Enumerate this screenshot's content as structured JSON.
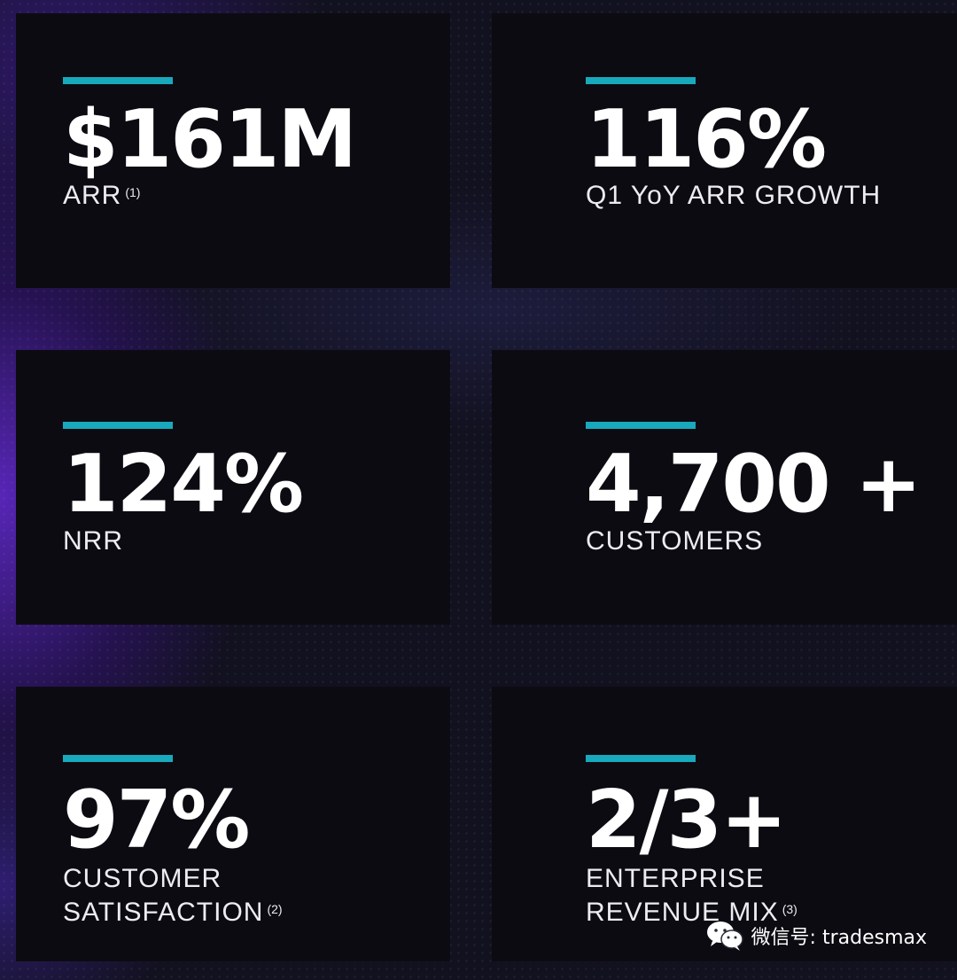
{
  "colors": {
    "accent_bar": "#19a9bc",
    "card_background": "#0d0b12",
    "text": "#ffffff"
  },
  "metrics": [
    {
      "value": "$161M",
      "label_lines": [
        "ARR"
      ],
      "footnote": "(1)"
    },
    {
      "value": "116%",
      "label_lines": [
        "Q1 YoY ARR GROWTH"
      ],
      "footnote": ""
    },
    {
      "value": "124%",
      "label_lines": [
        "NRR"
      ],
      "footnote": ""
    },
    {
      "value": "4,700 +",
      "label_lines": [
        "CUSTOMERS"
      ],
      "footnote": ""
    },
    {
      "value": "97%",
      "label_lines": [
        "CUSTOMER",
        "SATISFACTION"
      ],
      "footnote": "(2)"
    },
    {
      "value": "2/3+",
      "label_lines": [
        "ENTERPRISE",
        "REVENUE MIX"
      ],
      "footnote": "(3)"
    }
  ],
  "watermark": {
    "icon": "wechat-icon",
    "text": "微信号: tradesmax"
  }
}
